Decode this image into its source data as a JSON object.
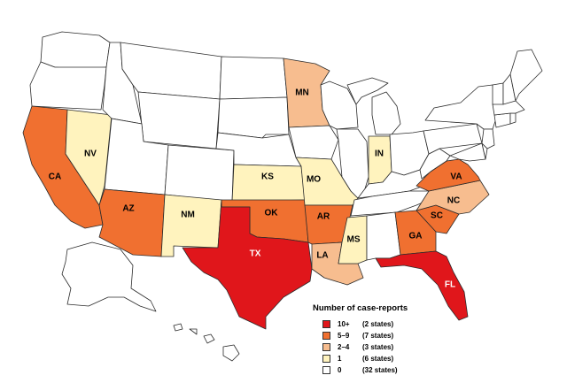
{
  "colors": {
    "c10": "#e0161b",
    "c5": "#f07030",
    "c2": "#f7bd8f",
    "c1": "#fff3be",
    "c0": "#ffffff"
  },
  "states": {
    "CA": {
      "label": "CA",
      "category": "c5"
    },
    "NV": {
      "label": "NV",
      "category": "c1"
    },
    "AZ": {
      "label": "AZ",
      "category": "c5"
    },
    "NM": {
      "label": "NM",
      "category": "c1"
    },
    "TX": {
      "label": "TX",
      "category": "c10"
    },
    "OK": {
      "label": "OK",
      "category": "c5"
    },
    "KS": {
      "label": "KS",
      "category": "c1"
    },
    "MN": {
      "label": "MN",
      "category": "c2"
    },
    "MO": {
      "label": "MO",
      "category": "c1"
    },
    "AR": {
      "label": "AR",
      "category": "c5"
    },
    "LA": {
      "label": "LA",
      "category": "c2"
    },
    "MS": {
      "label": "MS",
      "category": "c1"
    },
    "IN": {
      "label": "IN",
      "category": "c1"
    },
    "VA": {
      "label": "VA",
      "category": "c5"
    },
    "NC": {
      "label": "NC",
      "category": "c2"
    },
    "SC": {
      "label": "SC",
      "category": "c5"
    },
    "GA": {
      "label": "GA",
      "category": "c5"
    },
    "FL": {
      "label": "FL",
      "category": "c10"
    }
  },
  "legend": {
    "title": "Number of case-reports",
    "items": [
      {
        "range": "10+",
        "count": "(2 states)",
        "category": "c10"
      },
      {
        "range": "5–9",
        "count": "(7 states)",
        "category": "c5"
      },
      {
        "range": "2–4",
        "count": "(3 states)",
        "category": "c2"
      },
      {
        "range": "1",
        "count": "(6 states)",
        "category": "c1"
      },
      {
        "range": "0",
        "count": "(32 states)",
        "category": "c0"
      }
    ]
  }
}
